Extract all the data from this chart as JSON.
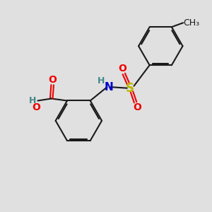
{
  "bg_color": "#e0e0e0",
  "bond_color": "#1a1a1a",
  "O_color": "#ee0000",
  "N_color": "#0000cc",
  "S_color": "#b8b800",
  "H_color": "#448888",
  "lw": 1.5,
  "fs": 9,
  "figsize": [
    3.0,
    3.0
  ],
  "dpi": 100,
  "xlim": [
    0,
    10
  ],
  "ylim": [
    0,
    10
  ]
}
